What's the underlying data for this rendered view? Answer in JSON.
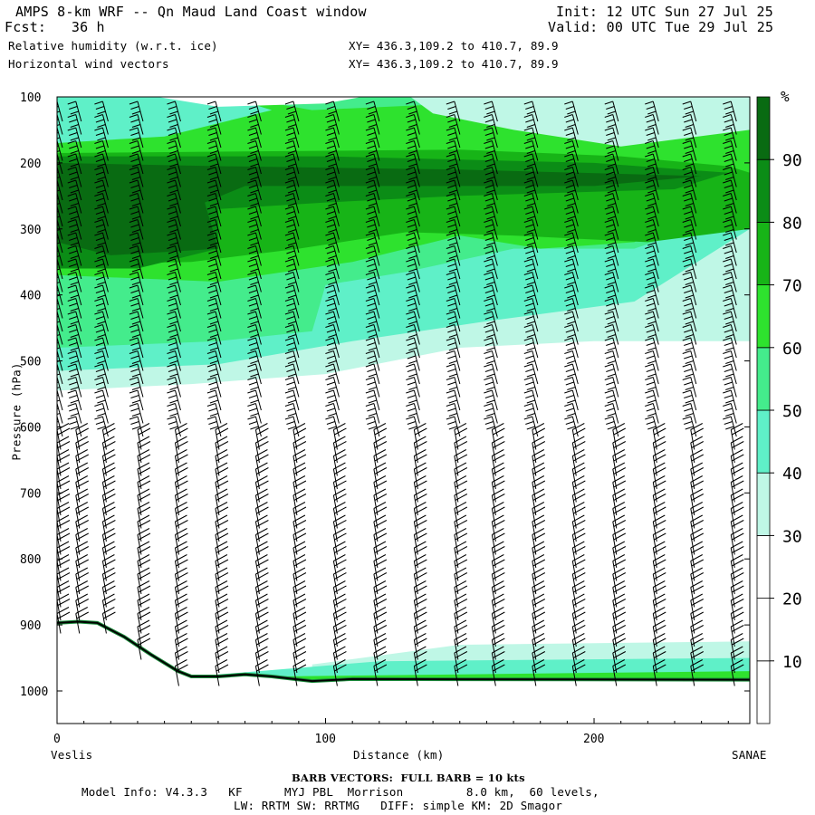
{
  "header": {
    "title": "AMPS 8-km WRF -- Qn Maud Land Coast window",
    "init": "Init: 12 UTC Sun 27 Jul 25",
    "fcst": "Fcst:   36 h",
    "valid": "Valid: 00 UTC Tue 29 Jul 25",
    "field1": "Relative humidity (w.r.t. ice)",
    "field1_xy": "XY= 436.3,109.2 to 410.7, 89.9",
    "field2": "Horizontal wind vectors",
    "field2_xy": "XY= 436.3,109.2 to 410.7, 89.9"
  },
  "footer": {
    "barb_note": "BARB VECTORS:  FULL BARB = 10 kts",
    "model_info_1": "Model Info: V4.3.3   KF      MYJ PBL  Morrison         8.0 km,  60 levels,",
    "model_info_2": "LW: RRTM SW: RRTMG   DIFF: simple KM: 2D Smagor"
  },
  "chart_data": {
    "type": "cross-section",
    "xlabel": "Distance (km)",
    "ylabel": "Pressure (hPa)",
    "x_range": [
      0,
      258
    ],
    "y_range": [
      1050,
      100
    ],
    "x_ticks": [
      0,
      100,
      200
    ],
    "y_ticks": [
      100,
      200,
      300,
      400,
      500,
      600,
      700,
      800,
      900,
      1000
    ],
    "x_end_labels": {
      "left": "Veslis",
      "right": "SANAE"
    },
    "colorbar": {
      "unit": "%",
      "levels": [
        10,
        20,
        30,
        40,
        50,
        60,
        70,
        80,
        90
      ],
      "colors": [
        "#ffffff",
        "#ffffff",
        "#ffffff",
        "#bff7e6",
        "#5ff0c8",
        "#44ec8c",
        "#2ee22e",
        "#17b417",
        "#0b8c16",
        "#096b12"
      ]
    },
    "rh_layers": [
      {
        "rh_min": 30,
        "color": "#bff7e6"
      },
      {
        "rh_min": 40,
        "color": "#5ff0c8"
      },
      {
        "rh_min": 50,
        "color": "#44ec8c"
      },
      {
        "rh_min": 60,
        "color": "#2ee22e"
      },
      {
        "rh_min": 70,
        "color": "#17b417"
      },
      {
        "rh_min": 80,
        "color": "#0b8c16"
      },
      {
        "rh_min": 90,
        "color": "#096b12"
      }
    ],
    "terrain_surface_hpa": [
      [
        0,
        897
      ],
      [
        8,
        895
      ],
      [
        15,
        897
      ],
      [
        25,
        918
      ],
      [
        35,
        945
      ],
      [
        45,
        970
      ],
      [
        50,
        978
      ],
      [
        60,
        978
      ],
      [
        70,
        975
      ],
      [
        80,
        978
      ],
      [
        95,
        985
      ],
      [
        110,
        982
      ],
      [
        258,
        983
      ]
    ],
    "barb_columns_km": [
      0,
      7,
      17,
      30,
      44,
      59,
      74,
      88,
      103,
      118,
      133,
      148,
      162,
      177,
      192,
      207,
      222,
      236,
      251
    ]
  }
}
